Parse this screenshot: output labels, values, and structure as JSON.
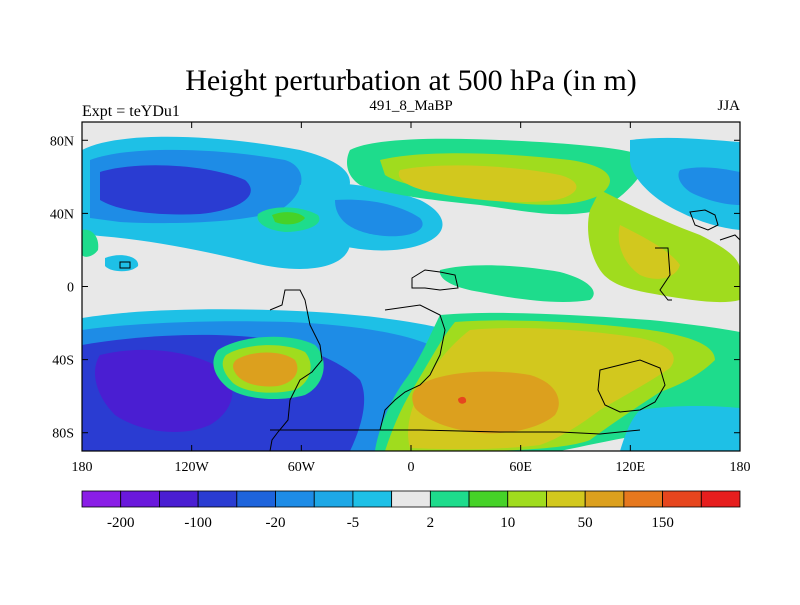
{
  "chart_data": {
    "type": "heatmap",
    "title": "Height perturbation at 500 hPa (in m)",
    "subtitle_left": "Expt = teYDu1",
    "subtitle_center": "491_8_MaBP",
    "subtitle_right": "JJA",
    "x_ticks": [
      "180",
      "120W",
      "60W",
      "0",
      "60E",
      "120E",
      "180"
    ],
    "y_ticks": [
      "80N",
      "40N",
      "0",
      "40S",
      "80S"
    ],
    "x_range": [
      -180,
      180
    ],
    "y_range": [
      -90,
      90
    ],
    "colorbar": {
      "labels": [
        "-200",
        "-100",
        "-20",
        "-5",
        "2",
        "10",
        "50",
        "150"
      ],
      "colors": [
        "#8a1ee6",
        "#6a18dc",
        "#4a1ed2",
        "#2a3cd2",
        "#1e64dc",
        "#1e8ce6",
        "#1ea8e6",
        "#1ec0e6",
        "#e8e8e8",
        "#1edc8c",
        "#46d228",
        "#a0dc1e",
        "#d2c81e",
        "#dca01e",
        "#e6781e",
        "#e6461e",
        "#e61e1e"
      ]
    }
  }
}
